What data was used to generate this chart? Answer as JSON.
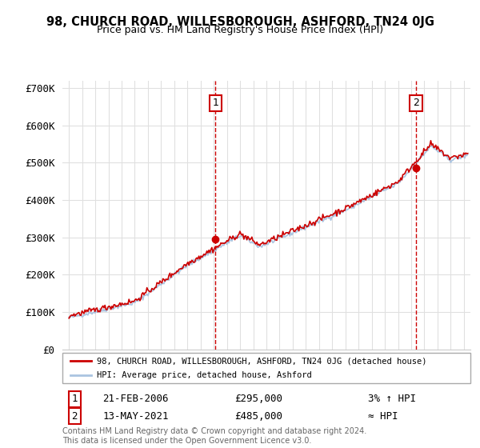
{
  "title": "98, CHURCH ROAD, WILLESBOROUGH, ASHFORD, TN24 0JG",
  "subtitle": "Price paid vs. HM Land Registry's House Price Index (HPI)",
  "background_color": "#ffffff",
  "plot_bg_color": "#ffffff",
  "grid_color": "#e0e0e0",
  "hpi_line_color": "#aac4e0",
  "price_line_color": "#cc0000",
  "vline_color": "#cc0000",
  "ylim": [
    0,
    720000
  ],
  "yticks": [
    0,
    100000,
    200000,
    300000,
    400000,
    500000,
    600000,
    700000
  ],
  "ytick_labels": [
    "£0",
    "£100K",
    "£200K",
    "£300K",
    "£400K",
    "£500K",
    "£600K",
    "£700K"
  ],
  "xlim_start": 1994.5,
  "xlim_end": 2025.5,
  "sale1_x": 2006.13,
  "sale1_y": 295000,
  "sale1_label": "1",
  "sale1_date": "21-FEB-2006",
  "sale1_price": "£295,000",
  "sale1_hpi": "3% ↑ HPI",
  "sale2_x": 2021.36,
  "sale2_y": 485000,
  "sale2_label": "2",
  "sale2_date": "13-MAY-2021",
  "sale2_price": "£485,000",
  "sale2_hpi": "≈ HPI",
  "legend_line1": "98, CHURCH ROAD, WILLESBOROUGH, ASHFORD, TN24 0JG (detached house)",
  "legend_line2": "HPI: Average price, detached house, Ashford",
  "footer": "Contains HM Land Registry data © Crown copyright and database right 2024.\nThis data is licensed under the Open Government Licence v3.0."
}
